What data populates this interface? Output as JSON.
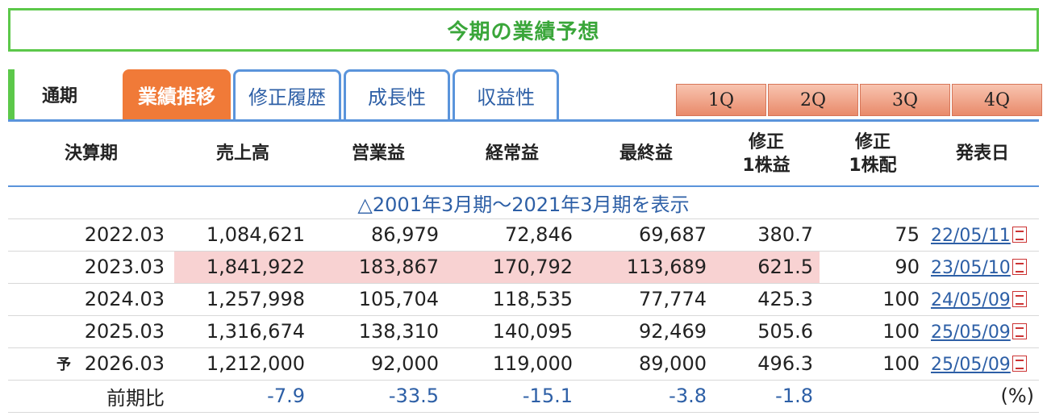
{
  "title": "今期の業績予想",
  "tabs": {
    "period_label": "通期",
    "items": [
      {
        "label": "業績推移",
        "active": true
      },
      {
        "label": "修正履歴",
        "active": false
      },
      {
        "label": "成長性",
        "active": false
      },
      {
        "label": "収益性",
        "active": false
      }
    ],
    "quarters": [
      "1Q",
      "2Q",
      "3Q",
      "4Q"
    ]
  },
  "table": {
    "headers": {
      "period": "決算期",
      "sales": "売上高",
      "operating": "営業益",
      "ordinary": "経常益",
      "net": "最終益",
      "eps_line1": "修正",
      "eps_line2": "1株益",
      "dps_line1": "修正",
      "dps_line2": "1株配",
      "date": "発表日"
    },
    "show_all": "△2001年3月期～2021年3月期を表示",
    "rows": [
      {
        "prefix": "",
        "period": "2022.03",
        "sales": "1,084,621",
        "operating": "86,979",
        "ordinary": "72,846",
        "net": "69,687",
        "eps": "380.7",
        "dps": "75",
        "date": "22/05/11"
      },
      {
        "prefix": "",
        "period": "2023.03",
        "sales": "1,841,922",
        "operating": "183,867",
        "ordinary": "170,792",
        "net": "113,689",
        "eps": "621.5",
        "dps": "90",
        "date": "23/05/10"
      },
      {
        "prefix": "",
        "period": "2024.03",
        "sales": "1,257,998",
        "operating": "105,704",
        "ordinary": "118,535",
        "net": "77,774",
        "eps": "425.3",
        "dps": "100",
        "date": "24/05/09"
      },
      {
        "prefix": "",
        "period": "2025.03",
        "sales": "1,316,674",
        "operating": "138,310",
        "ordinary": "140,095",
        "net": "92,469",
        "eps": "505.6",
        "dps": "100",
        "date": "25/05/09"
      },
      {
        "prefix": "予",
        "period": "2026.03",
        "sales": "1,212,000",
        "operating": "92,000",
        "ordinary": "119,000",
        "net": "89,000",
        "eps": "496.3",
        "dps": "100",
        "date": "25/05/09"
      }
    ],
    "ratio": {
      "label": "前期比",
      "sales": "-7.9",
      "operating": "-33.5",
      "ordinary": "-15.1",
      "net": "-3.8",
      "eps": "-1.8",
      "unit": "(%)"
    }
  },
  "colors": {
    "green": "#5cc84a",
    "orange": "#f07a38",
    "blue": "#2d5fa6",
    "highlight": "#f8d2d2"
  }
}
